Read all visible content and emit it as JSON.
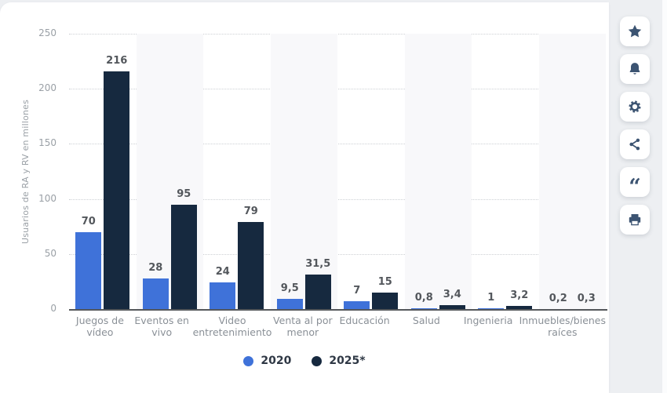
{
  "page": {
    "background_color": "#edeff2",
    "card_color": "#ffffff",
    "axis_color": "#54575b",
    "grid_color": "#cdd0d4",
    "stripe_color": "#f8f8fa",
    "icon_color": "#3c5472"
  },
  "chart_data": {
    "type": "bar",
    "title": "",
    "ylabel": "Usuarios de RA y RV en millones",
    "ylim": [
      0,
      250
    ],
    "yticks": [
      0,
      50,
      100,
      150,
      200,
      250
    ],
    "grid": "horizontal-dotted",
    "legend_position": "bottom",
    "categories": [
      "Juegos de vídeo",
      "Eventos en vivo",
      "Video entretenimiento",
      "Venta al por menor",
      "Educación",
      "Salud",
      "Ingenieria",
      "Inmuebles/bienes raíces"
    ],
    "category_label_lines": [
      [
        "Juegos de",
        "vídeo"
      ],
      [
        "Eventos en",
        "vivo"
      ],
      [
        "Video",
        "entretenimiento"
      ],
      [
        "Venta al por",
        "menor"
      ],
      [
        "Educación"
      ],
      [
        "Salud"
      ],
      [
        "Ingenieria"
      ],
      [
        "Inmuebles/bienes",
        "raíces"
      ]
    ],
    "series": [
      {
        "name": "2020",
        "color": "#3f72d9",
        "values": [
          70,
          28,
          24,
          9.5,
          7,
          0.8,
          1,
          0.2
        ],
        "value_labels": [
          "70",
          "28",
          "24",
          "9,5",
          "7",
          "0,8",
          "1",
          "0,2"
        ]
      },
      {
        "name": "2025*",
        "color": "#16293f",
        "values": [
          216,
          95,
          79,
          31.5,
          15,
          3.4,
          3.2,
          0.3
        ],
        "value_labels": [
          "216",
          "95",
          "79",
          "31,5",
          "15",
          "3,4",
          "3,2",
          "0,3"
        ]
      }
    ]
  },
  "toolbar": {
    "buttons": [
      {
        "id": "favorite",
        "icon": "star-icon"
      },
      {
        "id": "alerts",
        "icon": "bell-icon"
      },
      {
        "id": "settings",
        "icon": "gear-icon"
      },
      {
        "id": "share",
        "icon": "share-icon"
      },
      {
        "id": "cite",
        "icon": "quote-icon"
      },
      {
        "id": "print",
        "icon": "printer-icon"
      }
    ]
  }
}
